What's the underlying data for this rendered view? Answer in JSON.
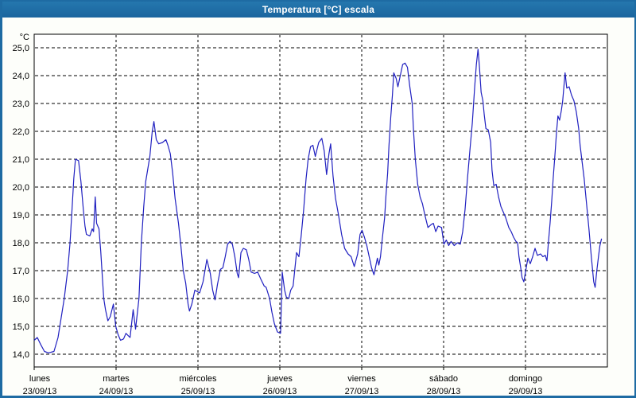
{
  "window": {
    "title": "Temperatura [°C] escala"
  },
  "axes": {
    "y_unit_label": "°C",
    "y_ticks": [
      {
        "label": "25,0",
        "value": 25.0
      },
      {
        "label": "24,0",
        "value": 24.0
      },
      {
        "label": "23,0",
        "value": 23.0
      },
      {
        "label": "22,0",
        "value": 22.0
      },
      {
        "label": "21,0",
        "value": 21.0
      },
      {
        "label": "20,0",
        "value": 20.0
      },
      {
        "label": "19,0",
        "value": 19.0
      },
      {
        "label": "18,0",
        "value": 18.0
      },
      {
        "label": "17,0",
        "value": 17.0
      },
      {
        "label": "16,0",
        "value": 16.0
      },
      {
        "label": "15,0",
        "value": 15.0
      },
      {
        "label": "14,0",
        "value": 14.0
      }
    ],
    "x_days": [
      {
        "name": "lunes",
        "date": "23/09/13"
      },
      {
        "name": "martes",
        "date": "24/09/13"
      },
      {
        "name": "miércoles",
        "date": "25/09/13"
      },
      {
        "name": "jueves",
        "date": "26/09/13"
      },
      {
        "name": "viernes",
        "date": "27/09/13"
      },
      {
        "name": "sábado",
        "date": "28/09/13"
      },
      {
        "name": "domingo",
        "date": "29/09/13"
      }
    ]
  },
  "colors": {
    "line": "#2020c0",
    "grid": "#000000",
    "titlebar": "#1e6ba3",
    "window_border": "#1e6ba3",
    "plot_background": "#ffffff"
  },
  "chart_data": {
    "type": "line",
    "title": "Temperatura [°C] escala",
    "ylabel": "°C",
    "ylim": [
      14.0,
      25.0
    ],
    "x_unit": "hours since lunes 23/09/13 00:00",
    "xlim": [
      0,
      168
    ],
    "grid": "dashed",
    "legend": "none",
    "series": [
      {
        "name": "Temperatura",
        "points": [
          [
            0,
            14.5
          ],
          [
            0.9,
            14.6
          ],
          [
            1.9,
            14.35
          ],
          [
            3,
            14.1
          ],
          [
            4.2,
            14.05
          ],
          [
            5.8,
            14.1
          ],
          [
            7,
            14.6
          ],
          [
            7.9,
            15.3
          ],
          [
            8.8,
            16.0
          ],
          [
            9.8,
            17.0
          ],
          [
            10.5,
            18.0
          ],
          [
            11.1,
            19.2
          ],
          [
            11.6,
            20.3
          ],
          [
            12.1,
            21.0
          ],
          [
            13,
            20.95
          ],
          [
            13.7,
            20.2
          ],
          [
            14.4,
            19.2
          ],
          [
            14.9,
            18.6
          ],
          [
            15.3,
            18.3
          ],
          [
            16.3,
            18.25
          ],
          [
            17,
            18.5
          ],
          [
            17.4,
            18.4
          ],
          [
            17.9,
            19.65
          ],
          [
            18.3,
            18.7
          ],
          [
            19,
            18.5
          ],
          [
            19.5,
            17.7
          ],
          [
            20,
            16.75
          ],
          [
            20.4,
            16.0
          ],
          [
            20.9,
            15.6
          ],
          [
            21.6,
            15.2
          ],
          [
            22.3,
            15.35
          ],
          [
            23.2,
            15.8
          ],
          [
            23.9,
            15.0
          ],
          [
            24.6,
            14.7
          ],
          [
            25.3,
            14.5
          ],
          [
            26.2,
            14.55
          ],
          [
            26.9,
            14.75
          ],
          [
            28.1,
            14.6
          ],
          [
            29,
            15.6
          ],
          [
            29.7,
            14.9
          ],
          [
            30.7,
            16.0
          ],
          [
            31.4,
            18.0
          ],
          [
            32.1,
            19.3
          ],
          [
            32.7,
            20.2
          ],
          [
            33.9,
            21.1
          ],
          [
            34.6,
            22.0
          ],
          [
            35.1,
            22.35
          ],
          [
            35.8,
            21.7
          ],
          [
            36.5,
            21.55
          ],
          [
            37.6,
            21.6
          ],
          [
            38.6,
            21.7
          ],
          [
            39.2,
            21.5
          ],
          [
            39.9,
            21.2
          ],
          [
            40.6,
            20.5
          ],
          [
            41.3,
            19.6
          ],
          [
            42.3,
            18.7
          ],
          [
            43,
            17.9
          ],
          [
            43.7,
            17.0
          ],
          [
            44.4,
            16.55
          ],
          [
            45.1,
            15.8
          ],
          [
            45.5,
            15.55
          ],
          [
            46.2,
            15.8
          ],
          [
            47.1,
            16.3
          ],
          [
            47.8,
            16.25
          ],
          [
            48.5,
            16.2
          ],
          [
            49.5,
            16.6
          ],
          [
            50.6,
            17.4
          ],
          [
            51.6,
            16.9
          ],
          [
            52.3,
            16.3
          ],
          [
            53,
            15.95
          ],
          [
            53.7,
            16.5
          ],
          [
            54.6,
            17.05
          ],
          [
            55.3,
            17.1
          ],
          [
            56,
            17.5
          ],
          [
            56.7,
            17.95
          ],
          [
            57.4,
            18.05
          ],
          [
            58.1,
            17.95
          ],
          [
            58.8,
            17.5
          ],
          [
            59.5,
            16.9
          ],
          [
            59.9,
            16.75
          ],
          [
            60.6,
            17.65
          ],
          [
            61.3,
            17.8
          ],
          [
            62.2,
            17.75
          ],
          [
            62.9,
            17.4
          ],
          [
            63.6,
            16.95
          ],
          [
            64.6,
            16.9
          ],
          [
            65.5,
            16.95
          ],
          [
            66.4,
            16.7
          ],
          [
            67.4,
            16.45
          ],
          [
            68,
            16.4
          ],
          [
            69,
            16.0
          ],
          [
            69.7,
            15.5
          ],
          [
            70.4,
            15.1
          ],
          [
            71.3,
            14.8
          ],
          [
            72.2,
            14.75
          ],
          [
            72.7,
            16.95
          ],
          [
            73.4,
            16.3
          ],
          [
            73.9,
            16.05
          ],
          [
            74.6,
            16.0
          ],
          [
            75.2,
            16.3
          ],
          [
            75.9,
            16.45
          ],
          [
            76.9,
            17.65
          ],
          [
            77.6,
            17.5
          ],
          [
            78.3,
            18.3
          ],
          [
            79,
            19.2
          ],
          [
            79.7,
            20.3
          ],
          [
            80.3,
            21.0
          ],
          [
            81,
            21.45
          ],
          [
            81.7,
            21.5
          ],
          [
            82.4,
            21.1
          ],
          [
            83.4,
            21.6
          ],
          [
            84.3,
            21.75
          ],
          [
            85,
            21.3
          ],
          [
            85.7,
            20.45
          ],
          [
            86.4,
            21.2
          ],
          [
            86.9,
            21.55
          ],
          [
            87.6,
            20.4
          ],
          [
            88.3,
            19.6
          ],
          [
            89.2,
            19.0
          ],
          [
            90.1,
            18.3
          ],
          [
            91,
            17.8
          ],
          [
            92,
            17.6
          ],
          [
            92.9,
            17.5
          ],
          [
            93.8,
            17.15
          ],
          [
            94.8,
            17.6
          ],
          [
            95.5,
            18.3
          ],
          [
            96.1,
            18.45
          ],
          [
            96.8,
            18.2
          ],
          [
            97.5,
            17.9
          ],
          [
            98.2,
            17.5
          ],
          [
            98.9,
            17.1
          ],
          [
            99.6,
            16.85
          ],
          [
            100.6,
            17.45
          ],
          [
            101,
            17.2
          ],
          [
            101.5,
            17.5
          ],
          [
            102,
            18.1
          ],
          [
            102.7,
            18.9
          ],
          [
            103.1,
            19.7
          ],
          [
            103.6,
            20.5
          ],
          [
            104,
            21.5
          ],
          [
            104.5,
            22.5
          ],
          [
            105,
            23.3
          ],
          [
            105.4,
            24.1
          ],
          [
            106.1,
            23.9
          ],
          [
            106.6,
            23.6
          ],
          [
            107.3,
            24.0
          ],
          [
            108,
            24.4
          ],
          [
            108.7,
            24.45
          ],
          [
            109.4,
            24.3
          ],
          [
            110.1,
            23.6
          ],
          [
            110.8,
            23.0
          ],
          [
            111.2,
            22.0
          ],
          [
            111.7,
            21.0
          ],
          [
            112.4,
            20.1
          ],
          [
            113.1,
            19.65
          ],
          [
            113.8,
            19.4
          ],
          [
            114.5,
            19.0
          ],
          [
            115.4,
            18.55
          ],
          [
            116.3,
            18.65
          ],
          [
            117,
            18.7
          ],
          [
            117.7,
            18.4
          ],
          [
            118.4,
            18.6
          ],
          [
            119.4,
            18.55
          ],
          [
            120.1,
            17.95
          ],
          [
            120.8,
            18.1
          ],
          [
            121.5,
            17.9
          ],
          [
            122.2,
            18.05
          ],
          [
            123.1,
            17.9
          ],
          [
            124,
            18.0
          ],
          [
            124.9,
            17.95
          ],
          [
            125.6,
            18.4
          ],
          [
            126.3,
            19.2
          ],
          [
            127,
            20.3
          ],
          [
            127.7,
            21.3
          ],
          [
            128.4,
            22.3
          ],
          [
            129.1,
            23.6
          ],
          [
            129.6,
            24.4
          ],
          [
            130.1,
            24.95
          ],
          [
            130.5,
            24.3
          ],
          [
            131,
            23.4
          ],
          [
            131.5,
            23.1
          ],
          [
            131.9,
            22.6
          ],
          [
            132.4,
            22.1
          ],
          [
            133.1,
            22.05
          ],
          [
            133.8,
            21.6
          ],
          [
            134.2,
            20.6
          ],
          [
            134.7,
            20.05
          ],
          [
            135.4,
            20.1
          ],
          [
            136.1,
            19.65
          ],
          [
            136.8,
            19.3
          ],
          [
            137.5,
            19.1
          ],
          [
            138.2,
            18.9
          ],
          [
            139.1,
            18.55
          ],
          [
            139.8,
            18.4
          ],
          [
            140.5,
            18.2
          ],
          [
            141.2,
            18.05
          ],
          [
            141.7,
            18.0
          ],
          [
            142.1,
            17.5
          ],
          [
            142.6,
            17.1
          ],
          [
            143,
            16.75
          ],
          [
            143.5,
            16.6
          ],
          [
            144.2,
            17.1
          ],
          [
            144.7,
            17.45
          ],
          [
            145.4,
            17.25
          ],
          [
            146.1,
            17.5
          ],
          [
            146.8,
            17.8
          ],
          [
            147.5,
            17.55
          ],
          [
            148.4,
            17.6
          ],
          [
            149.1,
            17.5
          ],
          [
            149.8,
            17.55
          ],
          [
            150.3,
            17.35
          ],
          [
            150.7,
            18.0
          ],
          [
            151.2,
            18.7
          ],
          [
            151.7,
            19.5
          ],
          [
            152.1,
            20.3
          ],
          [
            152.6,
            21.1
          ],
          [
            153.1,
            22.0
          ],
          [
            153.5,
            22.55
          ],
          [
            154,
            22.4
          ],
          [
            154.5,
            22.75
          ],
          [
            154.9,
            23.1
          ],
          [
            155.4,
            23.8
          ],
          [
            155.6,
            24.1
          ],
          [
            156.1,
            23.55
          ],
          [
            156.8,
            23.6
          ],
          [
            157.5,
            23.3
          ],
          [
            158.2,
            23.1
          ],
          [
            158.9,
            22.7
          ],
          [
            159.6,
            22.1
          ],
          [
            160,
            21.5
          ],
          [
            160.5,
            21.0
          ],
          [
            161.2,
            20.3
          ],
          [
            161.9,
            19.4
          ],
          [
            162.6,
            18.5
          ],
          [
            163.3,
            17.5
          ],
          [
            164,
            16.6
          ],
          [
            164.4,
            16.4
          ],
          [
            164.9,
            17.0
          ],
          [
            165.4,
            17.5
          ],
          [
            165.8,
            17.9
          ],
          [
            166.3,
            18.15
          ]
        ]
      }
    ]
  }
}
